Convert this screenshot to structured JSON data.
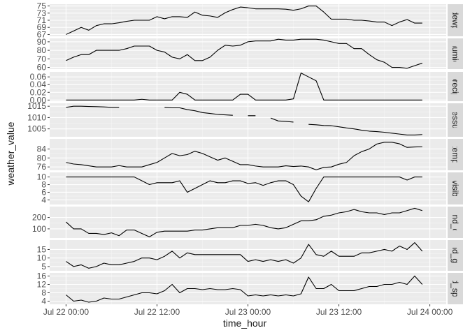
{
  "chart_data": {
    "type": "line",
    "xlabel": "time_hour",
    "ylabel": "weather_value",
    "x_ticks": [
      "Jul 22 00:00",
      "Jul 22 12:00",
      "Jul 23 00:00",
      "Jul 23 12:00",
      "Jul 24 00:00"
    ],
    "x_tick_hours": [
      0,
      12,
      24,
      36,
      48
    ],
    "xlim_hours": [
      0,
      48
    ],
    "x_start": "Jul 22 00:00",
    "grid": true,
    "facet_labels_position": "right",
    "facets": [
      {
        "label": "dewp",
        "ylim": [
          66.5,
          75.5
        ],
        "yticks": [
          67,
          69,
          71,
          73,
          75
        ],
        "x_hours": [
          0,
          1,
          2,
          3,
          4,
          5,
          6,
          7,
          8,
          9,
          10,
          11,
          12,
          13,
          14,
          15,
          16,
          17,
          18,
          19,
          20,
          21,
          22,
          23,
          24,
          25,
          26,
          27,
          28,
          29,
          30,
          31,
          32,
          33,
          34,
          35,
          36,
          37,
          38,
          39,
          40,
          41,
          42,
          43,
          44,
          45,
          46,
          47
        ],
        "values": [
          67,
          68,
          69,
          68.2,
          69.5,
          70,
          70,
          70.3,
          70.7,
          71,
          71,
          71,
          72,
          71.4,
          72,
          72,
          71.8,
          73.3,
          72.4,
          72.2,
          71.8,
          73.1,
          74,
          74.7,
          74.5,
          74.2,
          74.2,
          74.2,
          74.2,
          74.1,
          73.8,
          74.2,
          75,
          75,
          73.3,
          71.3,
          71.3,
          71.3,
          71,
          71,
          70.8,
          70.5,
          70.5,
          69.5,
          70.5,
          71.2,
          70.2,
          70.2
        ]
      },
      {
        "label": "humid",
        "ylim": [
          58,
          94
        ],
        "yticks": [
          60,
          70,
          80,
          90
        ],
        "x_hours": [
          0,
          1,
          2,
          3,
          4,
          5,
          6,
          7,
          8,
          9,
          10,
          11,
          12,
          13,
          14,
          15,
          16,
          17,
          18,
          19,
          20,
          21,
          22,
          23,
          24,
          25,
          26,
          27,
          28,
          29,
          30,
          31,
          32,
          33,
          34,
          35,
          36,
          37,
          38,
          39,
          40,
          41,
          42,
          43,
          44,
          45,
          46,
          47
        ],
        "values": [
          68,
          72,
          75,
          75,
          80,
          80,
          80,
          80,
          82,
          85,
          85,
          85,
          80,
          78,
          72,
          70,
          75,
          68,
          68,
          72,
          80,
          86,
          85,
          86,
          90,
          91,
          91,
          91,
          93,
          92,
          92,
          93,
          93,
          93,
          92,
          90,
          88,
          88,
          82,
          82,
          75,
          69,
          66,
          60,
          60,
          59,
          62,
          65
        ]
      },
      {
        "label": "precip",
        "ylim": [
          -0.003,
          0.073
        ],
        "yticks": [
          0.0,
          0.02,
          0.04,
          0.06
        ],
        "ytick_labels": [
          "0.00",
          "0.02",
          "0.04",
          "0.06"
        ],
        "x_hours": [
          0,
          1,
          2,
          3,
          4,
          5,
          6,
          7,
          8,
          9,
          10,
          11,
          12,
          13,
          14,
          15,
          16,
          17,
          18,
          19,
          20,
          21,
          22,
          23,
          24,
          25,
          26,
          27,
          28,
          29,
          30,
          31,
          32,
          33,
          34,
          35,
          36,
          37,
          38,
          39,
          40,
          41,
          42,
          43,
          44,
          45,
          46,
          47
        ],
        "values": [
          0,
          0,
          0,
          0,
          0,
          0,
          0,
          0,
          0,
          0,
          0.002,
          0,
          0,
          0,
          0,
          0.02,
          0.015,
          0,
          0,
          0,
          0,
          0,
          0,
          0.015,
          0.015,
          0,
          0,
          0,
          0,
          0,
          0.003,
          0.07,
          0.06,
          0.05,
          0,
          0,
          0,
          0,
          0,
          0,
          0,
          0,
          0,
          0,
          0,
          0,
          0,
          0
        ]
      },
      {
        "label": "pressure",
        "ylim": [
          1001.5,
          1016.3
        ],
        "yticks": [
          1005,
          1010,
          1015
        ],
        "x_hours": [
          0,
          1,
          2,
          3,
          4,
          5,
          6,
          7,
          8,
          9,
          10,
          11,
          12,
          13,
          14,
          15,
          16,
          17,
          18,
          19,
          20,
          21,
          22,
          23,
          24,
          25,
          26,
          27,
          28,
          29,
          30,
          31,
          32,
          33,
          34,
          35,
          36,
          37,
          38,
          39,
          40,
          41,
          42,
          43,
          44,
          45,
          46,
          47
        ],
        "values": [
          1014.5,
          1015,
          1015,
          1014.9,
          1014.8,
          1014.7,
          1014.5,
          1014.5,
          null,
          null,
          1014.5,
          null,
          null,
          1014.5,
          1014.3,
          1014.3,
          1013.5,
          1013,
          1012.2,
          1011.8,
          1011.4,
          1011.2,
          1011,
          null,
          1010.8,
          1010.8,
          null,
          1009.8,
          1008.5,
          1008.3,
          1008,
          null,
          1007,
          1006.8,
          1006.5,
          1006.4,
          1005.9,
          1005.4,
          1005,
          1004.4,
          1004,
          1003.8,
          1003.5,
          1003.1,
          1002.7,
          1002.3,
          1002.3,
          1002.5
        ]
      },
      {
        "label": "temp",
        "ylim": [
          74.5,
          88.5
        ],
        "yticks": [
          76,
          80,
          84
        ],
        "x_hours": [
          0,
          1,
          2,
          3,
          4,
          5,
          6,
          7,
          8,
          9,
          10,
          11,
          12,
          13,
          14,
          15,
          16,
          17,
          18,
          19,
          20,
          21,
          22,
          23,
          24,
          25,
          26,
          27,
          28,
          29,
          30,
          31,
          32,
          33,
          34,
          35,
          36,
          37,
          38,
          39,
          40,
          41,
          42,
          43,
          44,
          45,
          46,
          47
        ],
        "values": [
          78,
          77.3,
          77,
          76.5,
          76,
          76,
          76,
          76.6,
          76,
          76,
          76,
          77,
          78,
          80,
          82,
          81,
          81.5,
          83,
          82,
          80.5,
          79,
          80,
          78.5,
          77,
          77,
          76.4,
          76,
          76,
          76,
          76.5,
          76.2,
          76.4,
          76,
          74.7,
          75.8,
          76,
          77.2,
          78,
          81,
          82.8,
          84,
          86.2,
          87,
          87,
          86.3,
          84.7,
          84.9,
          85
        ]
      },
      {
        "label": "visib",
        "ylim": [
          2.8,
          11.2
        ],
        "yticks": [
          4,
          6,
          8,
          10
        ],
        "x_hours": [
          0,
          1,
          2,
          3,
          4,
          5,
          6,
          7,
          8,
          9,
          10,
          11,
          12,
          13,
          14,
          15,
          16,
          17,
          18,
          19,
          20,
          21,
          22,
          23,
          24,
          25,
          26,
          27,
          28,
          29,
          30,
          31,
          32,
          33,
          34,
          35,
          36,
          37,
          38,
          39,
          40,
          41,
          42,
          43,
          44,
          45,
          46,
          47
        ],
        "values": [
          10,
          10,
          10,
          10,
          10,
          10,
          10,
          10,
          10,
          10,
          9,
          8,
          8.5,
          8.5,
          8.5,
          9,
          6,
          7,
          8,
          9,
          8.5,
          8.5,
          9,
          9,
          8.3,
          8.5,
          7.8,
          8.5,
          9,
          9,
          8,
          5,
          3.5,
          7,
          10,
          10,
          10,
          10,
          10,
          10,
          10,
          10,
          10,
          10,
          10,
          9.2,
          10,
          10
        ]
      },
      {
        "label": "wind_dir",
        "ylim": [
          20,
          295
        ],
        "yticks": [
          100,
          200
        ],
        "x_hours": [
          0,
          1,
          2,
          3,
          4,
          5,
          6,
          7,
          8,
          9,
          10,
          11,
          12,
          13,
          14,
          15,
          16,
          17,
          18,
          19,
          20,
          21,
          22,
          23,
          24,
          25,
          26,
          27,
          28,
          29,
          30,
          31,
          32,
          33,
          34,
          35,
          36,
          37,
          38,
          39,
          40,
          41,
          42,
          43,
          44,
          45,
          46,
          47
        ],
        "values": [
          160,
          100,
          100,
          60,
          60,
          50,
          65,
          40,
          90,
          90,
          60,
          30,
          70,
          80,
          80,
          80,
          80,
          90,
          90,
          100,
          110,
          110,
          110,
          130,
          130,
          140,
          130,
          110,
          100,
          110,
          140,
          170,
          170,
          180,
          210,
          220,
          240,
          250,
          270,
          250,
          240,
          240,
          225,
          240,
          240,
          260,
          280,
          260
        ]
      },
      {
        "label": "wind_gust",
        "ylim": [
          2.5,
          20.5
        ],
        "yticks": [
          5,
          10,
          15
        ],
        "x_hours": [
          0,
          1,
          2,
          3,
          4,
          5,
          6,
          7,
          8,
          9,
          10,
          11,
          12,
          13,
          14,
          15,
          16,
          17,
          18,
          19,
          20,
          21,
          22,
          23,
          24,
          25,
          26,
          27,
          28,
          29,
          30,
          31,
          32,
          33,
          34,
          35,
          36,
          37,
          38,
          39,
          40,
          41,
          42,
          43,
          44,
          45,
          46,
          47
        ],
        "values": [
          8,
          5,
          6,
          4,
          5,
          7,
          6,
          6,
          7,
          8,
          10,
          10,
          9,
          11,
          14,
          10,
          13,
          12,
          12,
          12,
          12,
          12,
          12,
          12,
          8,
          9,
          8,
          9,
          8,
          9,
          7,
          10,
          18,
          12,
          11,
          14,
          11,
          11,
          11,
          13,
          13,
          14,
          15,
          14,
          17,
          15,
          19,
          14
        ]
      },
      {
        "label": "wind_speed",
        "ylim": [
          2.5,
          17.5
        ],
        "yticks": [
          4,
          8,
          12,
          16
        ],
        "x_hours": [
          0,
          1,
          2,
          3,
          4,
          5,
          6,
          7,
          8,
          9,
          10,
          11,
          12,
          13,
          14,
          15,
          16,
          17,
          18,
          19,
          20,
          21,
          22,
          23,
          24,
          25,
          26,
          27,
          28,
          29,
          30,
          31,
          32,
          33,
          34,
          35,
          36,
          37,
          38,
          39,
          40,
          41,
          42,
          43,
          44,
          45,
          46,
          47
        ],
        "values": [
          7,
          4,
          4.5,
          3.5,
          4,
          5.5,
          5,
          5,
          6,
          7,
          8,
          8,
          7.5,
          9,
          12,
          8,
          10,
          10,
          9.5,
          10,
          9.5,
          9.5,
          10,
          9.5,
          6.5,
          7,
          6.5,
          7,
          6.5,
          7,
          6.5,
          7.5,
          15.5,
          10,
          10,
          12,
          9,
          9,
          9,
          10,
          11,
          11,
          12,
          12,
          13,
          12,
          16,
          12
        ]
      }
    ]
  }
}
